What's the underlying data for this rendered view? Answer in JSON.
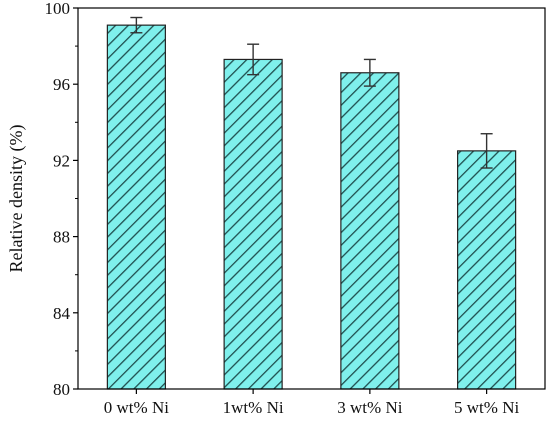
{
  "chart_data": {
    "type": "bar",
    "title": "",
    "xlabel": "",
    "ylabel": "Relative density (%)",
    "ylim": [
      80,
      100
    ],
    "yticks": [
      80,
      84,
      88,
      92,
      96,
      100
    ],
    "categories": [
      "0 wt% Ni",
      "1wt% Ni",
      "3 wt% Ni",
      "5 wt% Ni"
    ],
    "values": [
      99.1,
      97.3,
      96.6,
      92.5
    ],
    "errors": [
      0.4,
      0.8,
      0.7,
      0.9
    ],
    "grid": false,
    "legend": "none",
    "colors": {
      "bar_fill": "#7ff0ec",
      "bar_hatch": "#1f4f4f",
      "bar_edge": "#222222",
      "error_bar": "#333333",
      "axis": "#000000"
    }
  }
}
